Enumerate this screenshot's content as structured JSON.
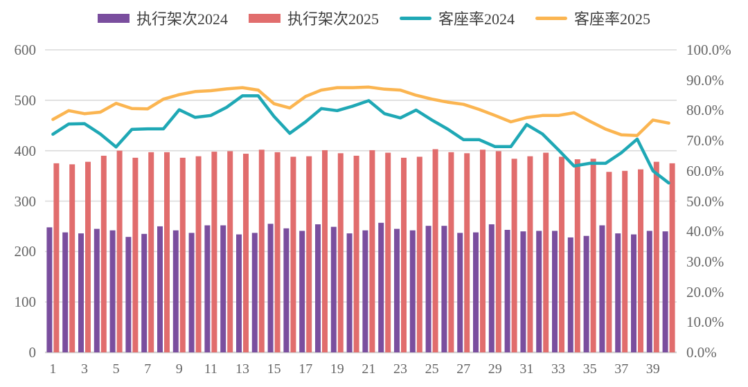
{
  "chart_data": {
    "type": "combo",
    "title": "",
    "grid": true,
    "legend_position": "top",
    "categories": [
      1,
      2,
      3,
      4,
      5,
      6,
      7,
      8,
      9,
      10,
      11,
      12,
      13,
      14,
      15,
      16,
      17,
      18,
      19,
      20,
      21,
      22,
      23,
      24,
      25,
      26,
      27,
      28,
      29,
      30,
      31,
      32,
      33,
      34,
      35,
      36,
      37,
      38,
      39,
      40
    ],
    "x_tick_labels": [
      "1",
      "3",
      "5",
      "7",
      "9",
      "11",
      "13",
      "15",
      "17",
      "19",
      "21",
      "23",
      "25",
      "27",
      "29",
      "31",
      "33",
      "35",
      "37",
      "39"
    ],
    "left_axis": {
      "min": 0,
      "max": 600,
      "ticks": [
        "0",
        "100",
        "200",
        "300",
        "400",
        "500",
        "600"
      ]
    },
    "right_axis": {
      "min": 0,
      "max": 100,
      "ticks": [
        "0.0%",
        "10.0%",
        "20.0%",
        "30.0%",
        "40.0%",
        "50.0%",
        "60.0%",
        "70.0%",
        "80.0%",
        "90.0%",
        "100.0%"
      ]
    },
    "series": [
      {
        "name": "执行架次2024",
        "type": "bar",
        "axis": "left",
        "color": "#7A4E9E",
        "values": [
          248,
          238,
          236,
          245,
          242,
          229,
          235,
          250,
          242,
          237,
          252,
          252,
          234,
          237,
          255,
          246,
          241,
          254,
          249,
          236,
          242,
          257,
          245,
          242,
          251,
          251,
          237,
          238,
          254,
          243,
          240,
          241,
          241,
          228,
          231,
          252,
          236,
          234,
          241,
          240
        ]
      },
      {
        "name": "执行架次2025",
        "type": "bar",
        "axis": "left",
        "color": "#E16D6D",
        "values": [
          375,
          373,
          378,
          390,
          400,
          386,
          397,
          397,
          386,
          389,
          398,
          399,
          394,
          402,
          397,
          388,
          389,
          401,
          395,
          390,
          401,
          396,
          386,
          388,
          403,
          397,
          395,
          402,
          399,
          384,
          389,
          396,
          388,
          383,
          384,
          358,
          360,
          363,
          378,
          375
        ]
      },
      {
        "name": "客座率2024",
        "type": "line",
        "axis": "right",
        "color": "#1FA8B5",
        "values": [
          72.1,
          75.5,
          75.6,
          72.2,
          67.9,
          73.7,
          73.9,
          73.9,
          80.2,
          77.7,
          78.3,
          81.0,
          84.8,
          84.8,
          78.0,
          72.4,
          76.2,
          80.6,
          79.9,
          81.4,
          83.2,
          78.9,
          77.5,
          80.1,
          76.8,
          73.8,
          70.3,
          70.3,
          68.0,
          68.0,
          75.3,
          72.2,
          67.0,
          61.6,
          62.5,
          62.5,
          66.0,
          70.5,
          60.0,
          56.0
        ]
      },
      {
        "name": "客座率2025",
        "type": "line",
        "axis": "right",
        "color": "#FBB551",
        "values": [
          77.0,
          79.9,
          78.9,
          79.4,
          82.3,
          80.6,
          80.5,
          83.7,
          85.2,
          86.2,
          86.5,
          87.1,
          87.5,
          86.7,
          82.2,
          80.8,
          84.6,
          86.7,
          87.5,
          87.5,
          87.7,
          87.0,
          86.7,
          85.0,
          83.7,
          82.7,
          82.0,
          80.3,
          78.3,
          76.2,
          77.6,
          78.3,
          78.3,
          79.2,
          76.4,
          73.8,
          71.9,
          71.7,
          76.8,
          75.8
        ]
      }
    ]
  },
  "styles": {
    "background": "#FFFFFF",
    "grid_color": "#DADADA",
    "axis_line_color": "#D2D2D2",
    "tick_text_color": "#666666",
    "legend_text_color": "#3F3F3F"
  }
}
